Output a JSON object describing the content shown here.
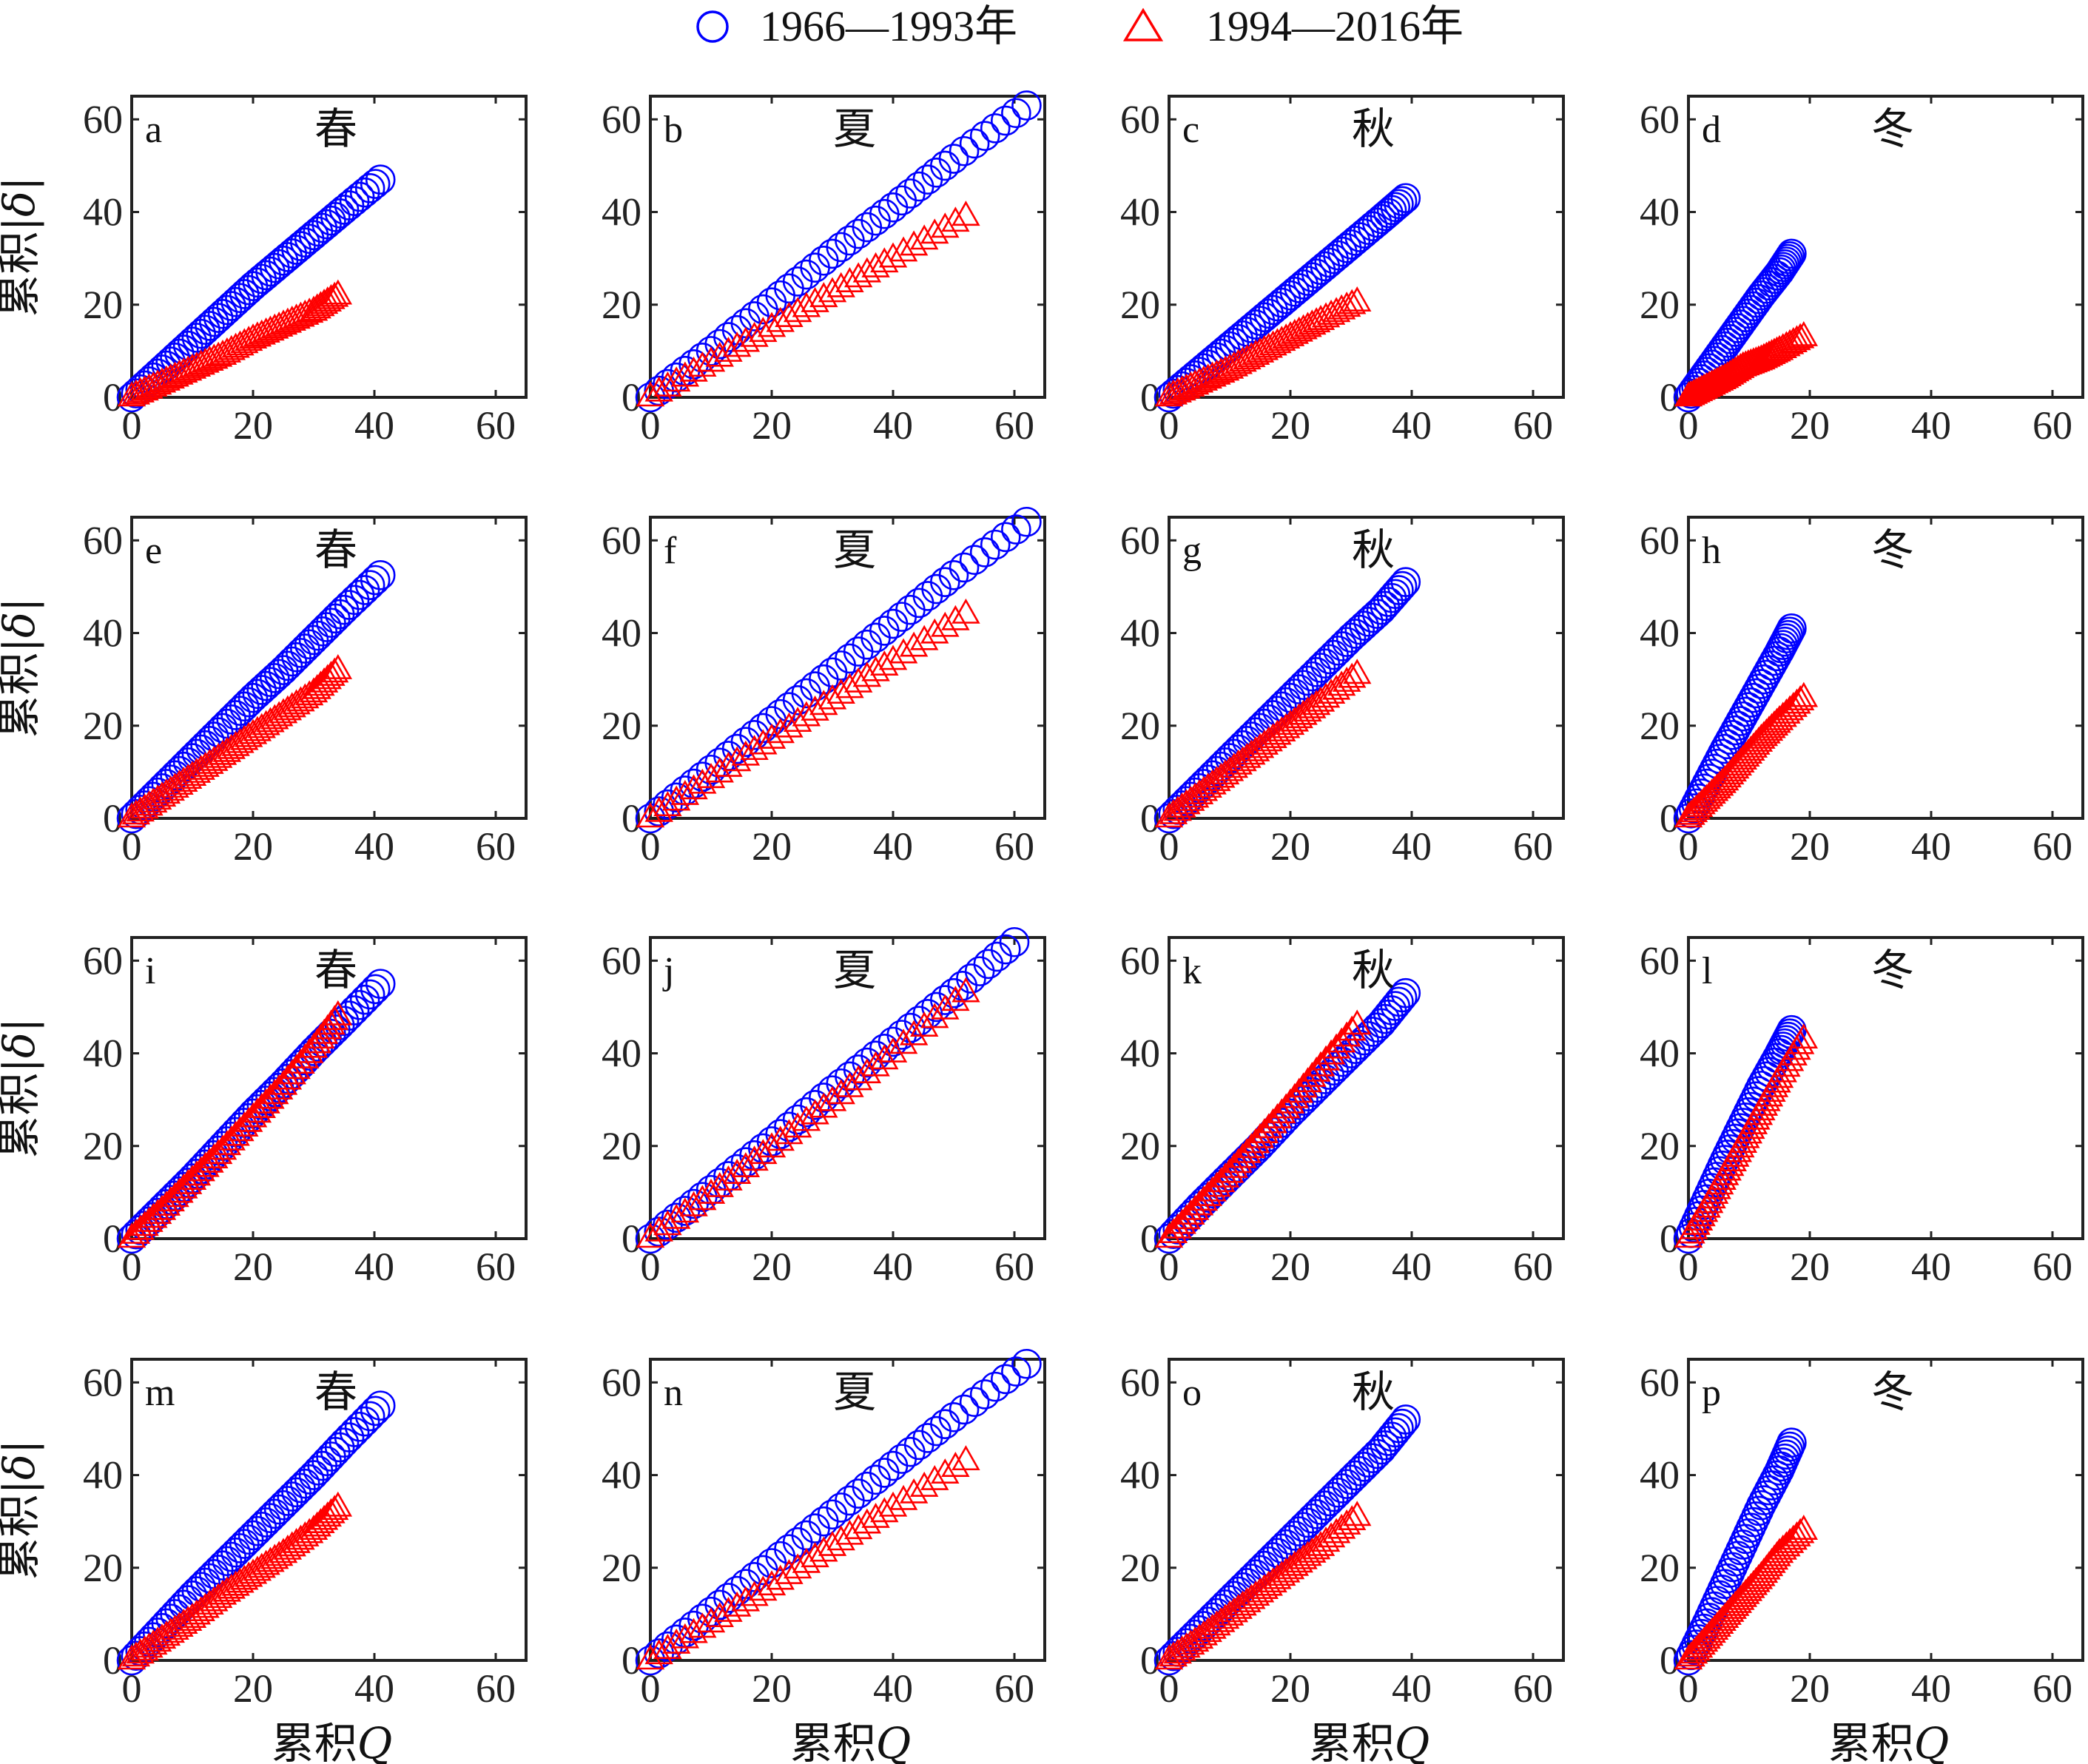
{
  "legend": [
    {
      "label": "1966—1993年",
      "marker": "circle",
      "color": "#0000ff"
    },
    {
      "label": "1994—2016年",
      "marker": "triangle",
      "color": "#ff0000"
    }
  ],
  "axis_labels": {
    "x": [
      "累积",
      "Q"
    ],
    "y": [
      "累积",
      "|",
      "δ",
      "|"
    ]
  },
  "chart_data": {
    "type": "scatter",
    "grid": false,
    "legend_position": "top-center",
    "xlim": [
      0,
      65
    ],
    "ylim": [
      0,
      65
    ],
    "xticks": [
      "0",
      "20",
      "40",
      "60"
    ],
    "yticks": [
      "0",
      "20",
      "40",
      "60"
    ],
    "series_names": [
      "1966—1993年",
      "1994—2016年"
    ],
    "panels": [
      {
        "letter": "a",
        "season": "春",
        "series": [
          {
            "name": "1966—1993年",
            "x": [
              0,
              5,
              10,
              15,
              20,
              25,
              30,
              35,
              41
            ],
            "y": [
              0,
              6,
              12,
              18,
              24,
              29.5,
              35,
              40.5,
              47
            ]
          },
          {
            "name": "1994—2016年",
            "x": [
              0,
              5,
              10,
              15,
              20,
              25,
              30,
              34
            ],
            "y": [
              0,
              3,
              6,
              9,
              12.5,
              15.5,
              18.5,
              22
            ]
          }
        ]
      },
      {
        "letter": "b",
        "season": "夏",
        "series": [
          {
            "name": "1966—1993年",
            "x": [
              0,
              10,
              20,
              30,
              40,
              50,
              62
            ],
            "y": [
              0,
              10,
              20.5,
              31,
              41,
              51.5,
              63
            ]
          },
          {
            "name": "1994—2016年",
            "x": [
              0,
              10,
              20,
              30,
              40,
              52
            ],
            "y": [
              0,
              7.5,
              15,
              22.5,
              30,
              39
            ]
          }
        ]
      },
      {
        "letter": "c",
        "season": "秋",
        "series": [
          {
            "name": "1966—1993年",
            "x": [
              0,
              5,
              10,
              15,
              20,
              25,
              30,
              35,
              39
            ],
            "y": [
              0,
              5.5,
              11,
              16.5,
              22,
              27.5,
              33,
              38.5,
              43
            ]
          },
          {
            "name": "1994—2016年",
            "x": [
              0,
              5,
              10,
              15,
              20,
              25,
              31
            ],
            "y": [
              0,
              3,
              6,
              9.5,
              13,
              16.5,
              20.5
            ]
          }
        ]
      },
      {
        "letter": "d",
        "season": "冬",
        "series": [
          {
            "name": "1966—1993年",
            "x": [
              0,
              3,
              6,
              9,
              12,
              15,
              17
            ],
            "y": [
              0,
              5.5,
              11,
              16.5,
              22,
              27,
              31
            ]
          },
          {
            "name": "1994—2016年",
            "x": [
              0,
              3,
              6,
              9,
              12,
              15,
              19
            ],
            "y": [
              0,
              2,
              4,
              6.5,
              8,
              10,
              13
            ]
          }
        ]
      },
      {
        "letter": "e",
        "season": "春",
        "series": [
          {
            "name": "1966—1993年",
            "x": [
              0,
              5,
              10,
              15,
              20,
              25,
              30,
              35,
              41
            ],
            "y": [
              0,
              6.5,
              13,
              19.5,
              26,
              32,
              38.5,
              45,
              52.5
            ]
          },
          {
            "name": "1994—2016年",
            "x": [
              0,
              5,
              10,
              15,
              20,
              25,
              30,
              34
            ],
            "y": [
              0,
              4.5,
              9,
              13.5,
              18,
              22.5,
              27,
              32
            ]
          }
        ]
      },
      {
        "letter": "f",
        "season": "夏",
        "series": [
          {
            "name": "1966—1993年",
            "x": [
              0,
              10,
              20,
              30,
              40,
              50,
              62
            ],
            "y": [
              0,
              10.5,
              21,
              31.5,
              42,
              52.5,
              64
            ]
          },
          {
            "name": "1994—2016年",
            "x": [
              0,
              10,
              20,
              30,
              40,
              52
            ],
            "y": [
              0,
              8.5,
              17,
              25.5,
              34,
              44
            ]
          }
        ]
      },
      {
        "letter": "g",
        "season": "秋",
        "series": [
          {
            "name": "1966—1993年",
            "x": [
              0,
              5,
              10,
              15,
              20,
              25,
              30,
              35,
              39
            ],
            "y": [
              0,
              6.5,
              13,
              19.5,
              26,
              32.5,
              39,
              45,
              51
            ]
          },
          {
            "name": "1994—2016年",
            "x": [
              0,
              5,
              10,
              15,
              20,
              25,
              31
            ],
            "y": [
              0,
              5,
              10,
              15,
              20,
              25,
              31
            ]
          }
        ]
      },
      {
        "letter": "h",
        "season": "冬",
        "series": [
          {
            "name": "1966—1993年",
            "x": [
              0,
              3,
              6,
              9,
              12,
              15,
              17
            ],
            "y": [
              0,
              7.5,
              15,
              22,
              29,
              36,
              41
            ]
          },
          {
            "name": "1994—2016年",
            "x": [
              0,
              3,
              6,
              9,
              12,
              15,
              19
            ],
            "y": [
              0,
              4,
              8,
              12.5,
              17,
              21,
              26
            ]
          }
        ]
      },
      {
        "letter": "i",
        "season": "春",
        "series": [
          {
            "name": "1966—1993年",
            "x": [
              0,
              5,
              10,
              15,
              20,
              25,
              30,
              35,
              41
            ],
            "y": [
              0,
              6.5,
              13,
              20,
              27,
              33.5,
              40.5,
              47,
              55
            ]
          },
          {
            "name": "1994—2016年",
            "x": [
              0,
              5,
              10,
              15,
              20,
              25,
              30,
              34
            ],
            "y": [
              0,
              6,
              12.5,
              19,
              26,
              33,
              41,
              48
            ]
          }
        ]
      },
      {
        "letter": "j",
        "season": "夏",
        "series": [
          {
            "name": "1966—1993年",
            "x": [
              0,
              10,
              20,
              30,
              40,
              50,
              60
            ],
            "y": [
              0,
              10.5,
              21,
              32,
              42.5,
              53,
              64
            ]
          },
          {
            "name": "1994—2016年",
            "x": [
              0,
              10,
              20,
              30,
              40,
              52
            ],
            "y": [
              0,
              9.5,
              19.5,
              29.5,
              40,
              53
            ]
          }
        ]
      },
      {
        "letter": "k",
        "season": "秋",
        "series": [
          {
            "name": "1966—1993年",
            "x": [
              0,
              5,
              10,
              15,
              20,
              25,
              30,
              35,
              39
            ],
            "y": [
              0,
              7,
              13.5,
              20,
              27,
              33.5,
              40,
              46.5,
              53
            ]
          },
          {
            "name": "1994—2016年",
            "x": [
              0,
              5,
              10,
              15,
              20,
              25,
              31
            ],
            "y": [
              0,
              7,
              14,
              21.5,
              29,
              37,
              46
            ]
          }
        ]
      },
      {
        "letter": "l",
        "season": "冬",
        "series": [
          {
            "name": "1966—1993年",
            "x": [
              0,
              3,
              6,
              9,
              12,
              15,
              17
            ],
            "y": [
              0,
              8.5,
              17,
              25,
              33,
              40,
              45
            ]
          },
          {
            "name": "1994—2016年",
            "x": [
              0,
              3,
              6,
              9,
              12,
              15,
              19
            ],
            "y": [
              0,
              6.5,
              13.5,
              20.5,
              27.5,
              34.5,
              43
            ]
          }
        ]
      },
      {
        "letter": "m",
        "season": "春",
        "series": [
          {
            "name": "1966—1993年",
            "x": [
              0,
              5,
              10,
              15,
              20,
              25,
              30,
              35,
              41
            ],
            "y": [
              0,
              7,
              14,
              20.5,
              27,
              33.5,
              40,
              47,
              55
            ]
          },
          {
            "name": "1994—2016年",
            "x": [
              0,
              5,
              10,
              15,
              20,
              25,
              30,
              34
            ],
            "y": [
              0,
              4.5,
              9,
              14,
              18.5,
              23,
              28,
              33
            ]
          }
        ]
      },
      {
        "letter": "n",
        "season": "夏",
        "series": [
          {
            "name": "1966—1993年",
            "x": [
              0,
              10,
              20,
              30,
              40,
              50,
              62
            ],
            "y": [
              0,
              10.5,
              21,
              31.5,
              42,
              52.5,
              64
            ]
          },
          {
            "name": "1994—2016年",
            "x": [
              0,
              10,
              20,
              30,
              40,
              52
            ],
            "y": [
              0,
              8,
              16,
              24.5,
              33,
              43
            ]
          }
        ]
      },
      {
        "letter": "o",
        "season": "秋",
        "series": [
          {
            "name": "1966—1993年",
            "x": [
              0,
              5,
              10,
              15,
              20,
              25,
              30,
              35,
              39
            ],
            "y": [
              0,
              6.5,
              13,
              19.5,
              26,
              32.5,
              39,
              45.5,
              52
            ]
          },
          {
            "name": "1994—2016年",
            "x": [
              0,
              5,
              10,
              15,
              20,
              25,
              31
            ],
            "y": [
              0,
              4.5,
              9.5,
              14.5,
              19.5,
              24.5,
              31
            ]
          }
        ]
      },
      {
        "letter": "p",
        "season": "冬",
        "series": [
          {
            "name": "1966—1993年",
            "x": [
              0,
              3,
              6,
              9,
              12,
              15,
              17
            ],
            "y": [
              0,
              8,
              16.5,
              25,
              33.5,
              41,
              47
            ]
          },
          {
            "name": "1994—2016年",
            "x": [
              0,
              3,
              6,
              9,
              12,
              15,
              19
            ],
            "y": [
              0,
              4.5,
              9,
              13.5,
              18,
              23,
              28
            ]
          }
        ]
      }
    ]
  }
}
